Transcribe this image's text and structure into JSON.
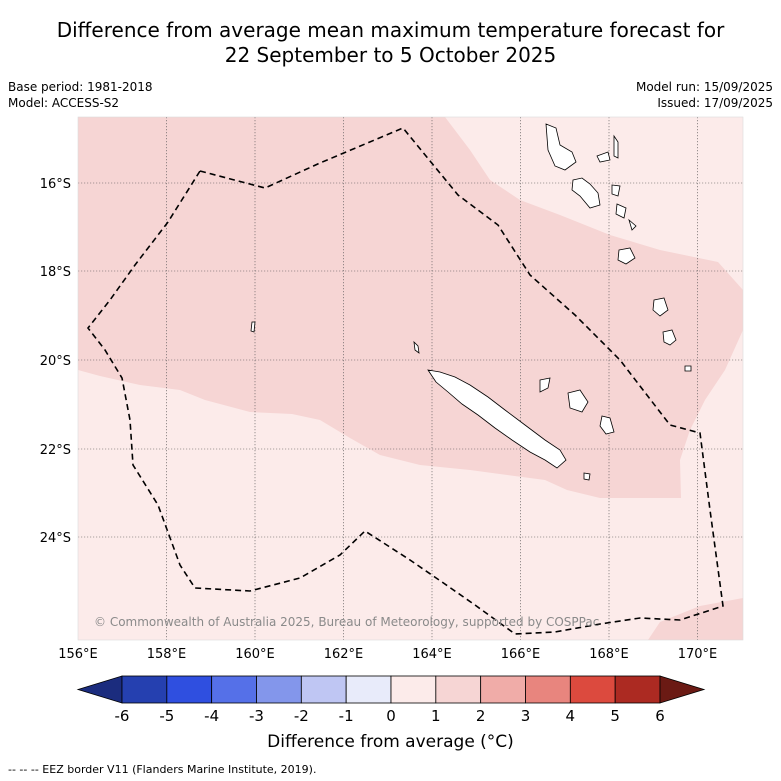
{
  "title": {
    "line1": "Difference from average mean maximum temperature forecast for",
    "line2": "22 September to 5 October 2025"
  },
  "meta": {
    "base_period": "Base period: 1981-2018",
    "model": "Model: ACCESS-S2",
    "model_run": "Model run: 15/09/2025",
    "issued": "Issued: 17/09/2025"
  },
  "map": {
    "lon_labels": [
      "156°E",
      "158°E",
      "160°E",
      "162°E",
      "164°E",
      "166°E",
      "168°E",
      "170°E"
    ],
    "lat_labels": [
      "16°S",
      "18°S",
      "20°S",
      "22°S",
      "24°S"
    ],
    "lon_range": [
      156,
      171
    ],
    "lat_range": [
      -14.5,
      -26.3
    ],
    "copyright": "© Commonwealth of Australia 2025, Bureau of Meteorology, supported by COSPPac"
  },
  "colorbar": {
    "labels": [
      "-6",
      "-5",
      "-4",
      "-3",
      "-2",
      "-1",
      "0",
      "1",
      "2",
      "3",
      "4",
      "5",
      "6"
    ],
    "colors": [
      "#1b2c7e",
      "#2540b0",
      "#2f4fe0",
      "#5570e8",
      "#8396eb",
      "#bfc6f3",
      "#e8ebfa",
      "#fcebea",
      "#f6d5d4",
      "#f0aca8",
      "#e8857e",
      "#dc4a3e",
      "#ac2a22",
      "#6b1a14"
    ],
    "title": "Difference from average (°C)"
  },
  "footnote": "-- -- -- EEZ border V11 (Flanders Marine Institute, 2019)."
}
